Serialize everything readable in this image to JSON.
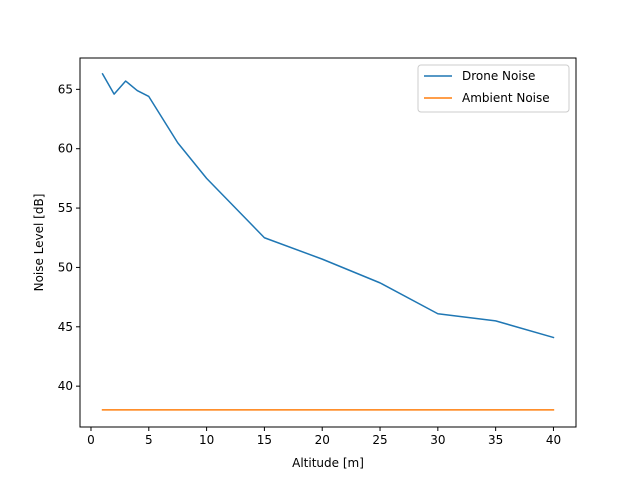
{
  "chart_data": {
    "type": "line",
    "title": "",
    "xlabel": "Altitude [m]",
    "ylabel": "Noise Level [dB]",
    "xlim": [
      -0.95,
      41.95
    ],
    "ylim": [
      36.56,
      67.64
    ],
    "xticks": [
      0,
      5,
      10,
      15,
      20,
      25,
      30,
      35,
      40
    ],
    "yticks": [
      40,
      45,
      50,
      55,
      60,
      65
    ],
    "grid": false,
    "legend_position": "top-right",
    "series": [
      {
        "name": "Drone Noise",
        "color": "#1f77b4",
        "x": [
          1,
          2,
          3,
          4,
          5,
          7.5,
          10,
          15,
          20,
          25,
          30,
          35,
          40
        ],
        "y": [
          66.3,
          64.6,
          65.7,
          64.9,
          64.4,
          60.5,
          57.5,
          52.5,
          50.7,
          48.7,
          46.1,
          45.5,
          44.1
        ]
      },
      {
        "name": "Ambient Noise",
        "color": "#ff7f0e",
        "x": [
          1,
          40
        ],
        "y": [
          38.0,
          38.0
        ]
      }
    ]
  }
}
